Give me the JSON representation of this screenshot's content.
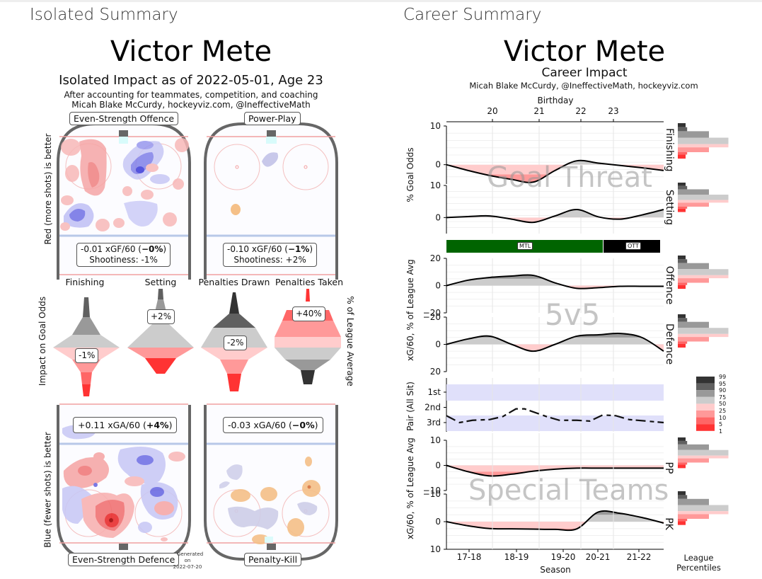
{
  "left": {
    "section_title": "Isolated Summary",
    "player_name": "Victor Mete",
    "subtitle": "Isolated Impact as of 2022-05-01, Age 23",
    "note1": "After accounting for teammates, competition, and coaching",
    "note2": "Micah Blake McCurdy, hockeyviz.com, @IneffectiveMath",
    "red_axis_label": "Red (more shots) is better",
    "blue_axis_label": "Blue (fewer shots) is better",
    "goal_odds_label": "Impact on Goal Odds",
    "league_avg_label": "% of League Average",
    "generated": [
      "Generated",
      "on",
      "2022-07-20"
    ],
    "rinks": {
      "es_offence": {
        "label": "Even-Strength Offence",
        "stat": "-0.01 xGF/60 (",
        "pct": "−0%",
        "close": ")",
        "shootiness": "Shootiness: -1%"
      },
      "power_play": {
        "label": "Power-Play",
        "stat": "-0.10 xGF/60 (",
        "pct": "−1%",
        "close": ")",
        "shootiness": "Shootiness: +2%"
      },
      "es_defence": {
        "label": "Even-Strength Defence",
        "stat": "+0.11 xGA/60 (",
        "pct": "+4%",
        "close": ")"
      },
      "penalty_kill": {
        "label": "Penalty-Kill",
        "stat": "-0.03 xGA/60 (",
        "pct": "−0%",
        "close": ")"
      }
    },
    "violins": [
      {
        "label": "Finishing",
        "value": "-1%"
      },
      {
        "label": "Setting",
        "value": "+2%"
      },
      {
        "label": "Penalties Drawn",
        "value": "-2%"
      },
      {
        "label": "Penalties Taken",
        "value": "+40%"
      }
    ]
  },
  "right": {
    "section_title": "Career Summary",
    "player_name": "Victor Mete",
    "subtitle": "Career Impact",
    "credit": "Micah Blake McCurdy, @IneffectiveMath, hockeyviz.com",
    "watermarks": {
      "goal_threat": "Goal Threat",
      "fivev5": "5v5",
      "special": "Special Teams"
    },
    "team_bar": [
      {
        "team": "MTL",
        "color": "#006400"
      },
      {
        "team": "OTT",
        "color": "#000000"
      }
    ],
    "legend_title": [
      "League",
      "Percentiles"
    ],
    "legend_levels": [
      "99",
      "95",
      "90",
      "75",
      "50",
      "25",
      "10",
      "5",
      "1"
    ]
  },
  "chart_data": [
    {
      "type": "line",
      "title": "Career Impact",
      "xlabel": "Season",
      "x_ticks": [
        "17-18",
        "18-19",
        "19-20",
        "20-21",
        "21-22"
      ],
      "top_axis_label": "Birthday",
      "top_ticks": [
        "20",
        "21",
        "22",
        "23"
      ],
      "panels": [
        {
          "name": "Finishing",
          "group": "Goal Threat",
          "ylabel": "% Goal Odds",
          "ylim": [
            -5,
            10
          ],
          "yticks": [
            "10",
            "0"
          ],
          "x": [
            0,
            0.5,
            1.0,
            1.5,
            2.0,
            2.5,
            3.0,
            3.5,
            4.0,
            4.5,
            5.0
          ],
          "values": [
            0,
            -1.5,
            -2.8,
            -3.8,
            -4.5,
            -1.5,
            1.0,
            0.4,
            -0.2,
            -0.8,
            -1.5
          ]
        },
        {
          "name": "Setting",
          "group": "Goal Threat",
          "ylabel": "% Goal Odds",
          "ylim": [
            -5,
            10
          ],
          "yticks": [
            "10",
            "0"
          ],
          "x": [
            0,
            0.5,
            1.0,
            1.5,
            2.0,
            2.5,
            3.0,
            3.5,
            4.0,
            4.5,
            5.0
          ],
          "values": [
            0,
            0.3,
            0.5,
            -0.5,
            -1.5,
            0.5,
            2.5,
            0.2,
            -0.5,
            0.8,
            2.5
          ]
        },
        {
          "name": "Offence",
          "group": "5v5",
          "ylabel": "xG/60, % of League Avg",
          "ylim": [
            -20,
            20
          ],
          "yticks": [
            "20",
            "0",
            "−20"
          ],
          "x": [
            0,
            0.5,
            1.0,
            1.5,
            2.0,
            2.5,
            3.0,
            3.5,
            4.0,
            4.5,
            5.0
          ],
          "values": [
            0,
            4,
            6,
            7,
            7.5,
            2,
            -2,
            -1.5,
            -0.5,
            -0.5,
            -0.5
          ]
        },
        {
          "name": "Defence",
          "group": "5v5",
          "ylabel": "xG/60, % of League Avg",
          "ylim": [
            20,
            -20
          ],
          "yticks": [
            "−20",
            "0",
            "20"
          ],
          "x": [
            0,
            0.5,
            1.0,
            1.5,
            2.0,
            2.5,
            3.0,
            3.5,
            4.0,
            4.5,
            5.0
          ],
          "values": [
            0,
            -4,
            -6,
            0,
            5,
            0,
            -6,
            -7,
            -8,
            -5,
            5
          ]
        },
        {
          "name": "PP",
          "group": "Special Teams",
          "ylabel": "xG/60, % of League Avg",
          "ylim": [
            -10,
            10
          ],
          "yticks": [
            "10",
            "0",
            "−10"
          ],
          "x": [
            0,
            0.5,
            1.0,
            1.5,
            2.0,
            2.5,
            3.0,
            3.5,
            4.0,
            4.5,
            5.0
          ],
          "values": [
            0,
            -2.5,
            -4.2,
            -3.5,
            -2.3,
            -1.5,
            -1.1,
            -1.1,
            -1.1,
            -1.1,
            -1.1
          ]
        },
        {
          "name": "PK",
          "group": "Special Teams",
          "ylabel": "xG/60, % of League Avg",
          "ylim": [
            10,
            -10
          ],
          "yticks": [
            "−10",
            "0",
            "10"
          ],
          "x": [
            0,
            0.5,
            1.0,
            1.5,
            2.0,
            2.5,
            3.0,
            3.5,
            4.0,
            4.5,
            5.0
          ],
          "values": [
            0,
            1.5,
            2.5,
            2.6,
            2.7,
            2.8,
            2.6,
            -3.5,
            -3.0,
            -1.5,
            0.5
          ]
        }
      ]
    },
    {
      "type": "line",
      "name": "Pair (All Sit)",
      "ylabel": "Pair (All Sit)",
      "yticks": [
        "1st",
        "2nd",
        "3rd"
      ],
      "x": [
        0,
        0.3,
        0.6,
        1.0,
        1.3,
        1.6,
        1.8,
        2.0,
        2.3,
        2.6,
        3.0,
        3.3,
        3.6,
        3.9,
        4.2,
        4.6,
        5.0
      ],
      "values": [
        2.55,
        3.0,
        2.85,
        2.8,
        2.6,
        2.1,
        2.1,
        2.3,
        2.6,
        2.85,
        2.85,
        2.9,
        2.5,
        2.55,
        2.8,
        2.9,
        3.0
      ]
    },
    {
      "type": "bar",
      "name": "League Percentiles histograms",
      "categories": [
        "99",
        "95",
        "90",
        "75",
        "50",
        "25",
        "10",
        "5",
        "1"
      ],
      "series": [
        {
          "name": "Finishing",
          "values": [
            1,
            1.2,
            4,
            6.5,
            6.5,
            4,
            1.2,
            1
          ]
        },
        {
          "name": "Setting",
          "values": [
            1,
            1.2,
            4,
            6.5,
            6.5,
            4,
            1.2,
            1
          ]
        },
        {
          "name": "Offence",
          "values": [
            1,
            1.2,
            4,
            6.5,
            6.5,
            4,
            1.2,
            1
          ]
        },
        {
          "name": "Defence",
          "values": [
            1,
            1.2,
            4,
            6.5,
            6.5,
            4,
            1.2,
            1
          ]
        },
        {
          "name": "PP",
          "values": [
            1,
            1.2,
            4,
            6.5,
            6.5,
            4,
            1.2,
            1
          ]
        },
        {
          "name": "PK",
          "values": [
            1,
            1.2,
            4,
            6.5,
            6.5,
            4,
            1.2,
            1
          ]
        }
      ]
    }
  ]
}
